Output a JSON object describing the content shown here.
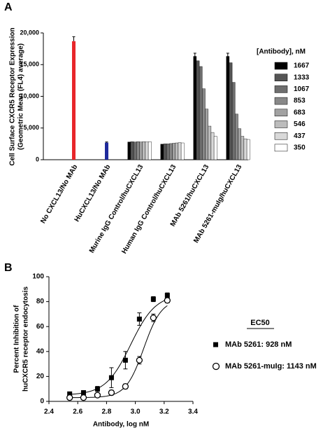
{
  "chart_data": [
    {
      "panel_label": "A",
      "type": "bar",
      "y_label": [
        "Cell Surface CXCR5 Receptor Expression",
        "(Geometric Mean (FL4) average)"
      ],
      "categories": [
        "No CXCL13/No MAb",
        "HuCXCL13/No MAb",
        "Murine IgG Control/huCXCL13",
        "Human IgG Control/huCXCL13",
        "MAb 5261/huCXCL13",
        "MAb 5261-muIg/huCXCL13"
      ],
      "values": [
        18700,
        2700,
        null,
        null,
        null,
        null
      ],
      "errors": [
        700,
        100,
        null,
        null,
        null,
        null
      ],
      "colors": [
        "#e8262a",
        "#1f2a9c",
        null,
        null,
        null,
        null
      ],
      "legend_title": "[Antibody], nM",
      "series": [
        {
          "name": "1667",
          "color": "#000000",
          "values": [
            null,
            null,
            2800,
            2450,
            16300,
            16300
          ],
          "errors": [
            null,
            null,
            null,
            null,
            500,
            500
          ]
        },
        {
          "name": "1333",
          "color": "#555555",
          "values": [
            null,
            null,
            2850,
            2500,
            15600,
            15300
          ]
        },
        {
          "name": "1067",
          "color": "#6e6e6e",
          "values": [
            null,
            null,
            2800,
            2500,
            14700,
            12200
          ]
        },
        {
          "name": "853",
          "color": "#888888",
          "values": [
            null,
            null,
            2850,
            2550,
            11200,
            7200
          ]
        },
        {
          "name": "683",
          "color": "#a2a2a2",
          "values": [
            null,
            null,
            2800,
            2600,
            8000,
            4900
          ]
        },
        {
          "name": "546",
          "color": "#bcbcbc",
          "values": [
            null,
            null,
            2850,
            2650,
            5300,
            3700
          ]
        },
        {
          "name": "437",
          "color": "#d9d9d9",
          "values": [
            null,
            null,
            2800,
            2700,
            4300,
            3300
          ]
        },
        {
          "name": "350",
          "color": "#ffffff",
          "values": [
            null,
            null,
            2850,
            2650,
            3700,
            3200
          ]
        }
      ],
      "ylim": [
        0,
        20000
      ],
      "yticks": [
        0,
        {
          "value": 5000,
          "label": "5,000"
        },
        {
          "value": 10000,
          "label": "10,000"
        },
        {
          "value": 15000,
          "label": "15,000"
        },
        {
          "value": 20000,
          "label": "20,000"
        }
      ]
    },
    {
      "panel_label": "B",
      "type": "scatter",
      "x_label": "Antibody, log nM",
      "y_label": [
        "Percent Inhibition of",
        "huCXCR5 receptor endocytosis"
      ],
      "legend_title": "EC50",
      "x": [
        2.544,
        2.64,
        2.737,
        2.834,
        2.931,
        3.028,
        3.125,
        3.222
      ],
      "series": [
        {
          "name": "MAb 5261: 928 nM",
          "color": "#000000",
          "marker": "square",
          "values": [
            6,
            7,
            10,
            19,
            33,
            66,
            82,
            85
          ],
          "errors": [
            1,
            1,
            2,
            8,
            7,
            5,
            2,
            2
          ],
          "fit": {
            "bottom": 5,
            "top": 86,
            "log_ec50": 2.9675,
            "hill": 5
          }
        },
        {
          "name": "MAb 5261-muIg: 1143 nM",
          "color": "#000000",
          "marker": "circle",
          "values": [
            3,
            3,
            5,
            7,
            12,
            33,
            67,
            81
          ],
          "errors": [
            1,
            1,
            1,
            2,
            2,
            3,
            3,
            2
          ],
          "fit": {
            "bottom": 3,
            "top": 82,
            "log_ec50": 3.058,
            "hill": 7
          }
        }
      ],
      "xlim": [
        2.4,
        3.4
      ],
      "xticks": [
        2.4,
        2.6,
        2.8,
        {
          "value": 3,
          "label": "3.0"
        },
        3.2,
        3.4
      ],
      "ylim": [
        0,
        100
      ],
      "yticks": [
        0,
        20,
        40,
        60,
        80,
        100
      ]
    }
  ]
}
